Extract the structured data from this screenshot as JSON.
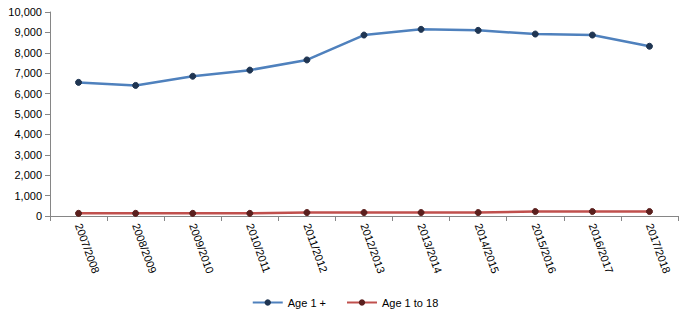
{
  "chart_data": {
    "type": "line",
    "categories": [
      "2007/2008",
      "2008/2009",
      "2009/2010",
      "2010/2011",
      "2011/2012",
      "2012/2013",
      "2013/2014",
      "2014/2015",
      "2015/2016",
      "2016/2017",
      "2017/2018"
    ],
    "series": [
      {
        "name": "Age 1 +",
        "color": "#4f81bd",
        "marker": "circle",
        "values": [
          6550,
          6400,
          6850,
          7150,
          7650,
          8870,
          9150,
          9100,
          8920,
          8870,
          8320
        ]
      },
      {
        "name": "Age 1 to 18",
        "color": "#c0504d",
        "marker": "circle",
        "values": [
          130,
          130,
          130,
          130,
          170,
          170,
          170,
          170,
          220,
          220,
          220
        ]
      }
    ],
    "ylim": [
      0,
      10000
    ],
    "yticks": [
      0,
      {
        "value": 1000,
        "label": "1,000"
      },
      {
        "value": 2000,
        "label": "2,000"
      },
      {
        "value": 3000,
        "label": "3,000"
      },
      {
        "value": 4000,
        "label": "4,000"
      },
      {
        "value": 5000,
        "label": "5,000"
      },
      {
        "value": 6000,
        "label": "6,000"
      },
      {
        "value": 7000,
        "label": "7,000"
      },
      {
        "value": 8000,
        "label": "8,000"
      },
      {
        "value": 9000,
        "label": "9,000"
      },
      {
        "value": 10000,
        "label": "10,000"
      }
    ],
    "grid": false,
    "legend": "bottom"
  }
}
